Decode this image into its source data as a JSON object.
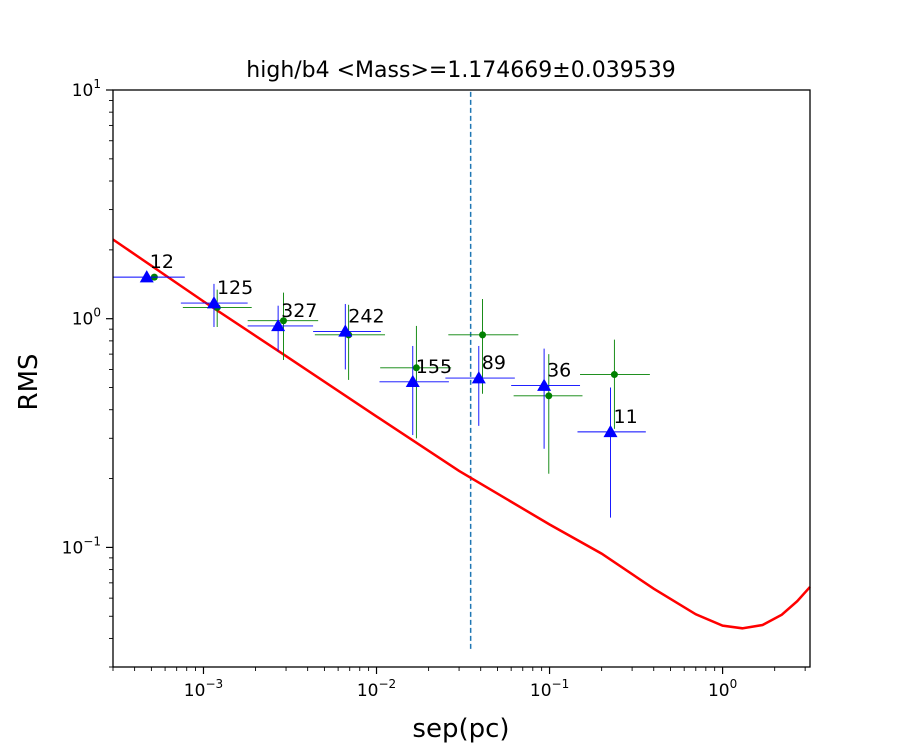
{
  "chart_data": {
    "type": "scatter",
    "title": "high/b4 <Mass>=1.174669±0.039539",
    "xlabel": "sep(pc)",
    "ylabel": "RMS",
    "xscale": "log",
    "yscale": "log",
    "xlim": [
      0.0003,
      3.2
    ],
    "ylim": [
      0.03,
      10
    ],
    "x_ticks": [
      {
        "value": 0.001,
        "base": "10",
        "exp": "−3"
      },
      {
        "value": 0.01,
        "base": "10",
        "exp": "−2"
      },
      {
        "value": 0.1,
        "base": "10",
        "exp": "−1"
      },
      {
        "value": 1,
        "base": "10",
        "exp": "0"
      }
    ],
    "y_ticks": [
      {
        "value": 0.1,
        "base": "10",
        "exp": "−1"
      },
      {
        "value": 1,
        "base": "10",
        "exp": "0"
      },
      {
        "value": 10,
        "base": "10",
        "exp": "1"
      }
    ],
    "grid": false,
    "vline": {
      "x": 0.035,
      "color": "#1f77b4",
      "style": "dashed",
      "y_range": [
        0.036,
        10
      ]
    },
    "series": [
      {
        "marker": "triangle",
        "color": "#0000ff",
        "points": [
          {
            "x": 0.00047,
            "y": 1.52,
            "xerr": [
              0.0003,
              0.00078
            ],
            "yerr": [
              1.52,
              1.52
            ],
            "label": "12"
          },
          {
            "x": 0.00115,
            "y": 1.17,
            "xerr": [
              0.00074,
              0.0018
            ],
            "yerr": [
              0.92,
              1.42
            ],
            "label": "125"
          },
          {
            "x": 0.0027,
            "y": 0.93,
            "xerr": [
              0.0018,
              0.0043
            ],
            "yerr": [
              0.72,
              1.14
            ],
            "label": "327"
          },
          {
            "x": 0.0066,
            "y": 0.88,
            "xerr": [
              0.0043,
              0.0106
            ],
            "yerr": [
              0.6,
              1.16
            ],
            "label": "242"
          },
          {
            "x": 0.0162,
            "y": 0.53,
            "xerr": [
              0.0104,
              0.0262
            ],
            "yerr": [
              0.31,
              0.76
            ],
            "label": "155"
          },
          {
            "x": 0.039,
            "y": 0.55,
            "xerr": [
              0.025,
              0.063
            ],
            "yerr": [
              0.34,
              0.76
            ],
            "label": "89"
          },
          {
            "x": 0.093,
            "y": 0.51,
            "xerr": [
              0.06,
              0.15
            ],
            "yerr": [
              0.27,
              0.74
            ],
            "label": "36"
          },
          {
            "x": 0.225,
            "y": 0.32,
            "xerr": [
              0.145,
              0.36
            ],
            "yerr": [
              0.135,
              0.5
            ],
            "label": "11"
          }
        ]
      },
      {
        "marker": "circle",
        "color": "#008000",
        "points": [
          {
            "x": 0.00052,
            "y": 1.52,
            "xerr": [
              0.00052,
              0.00052
            ],
            "yerr": [
              1.52,
              1.52
            ]
          },
          {
            "x": 0.0012,
            "y": 1.12,
            "xerr": [
              0.00076,
              0.0019
            ],
            "yerr": [
              0.92,
              1.34
            ]
          },
          {
            "x": 0.0029,
            "y": 0.98,
            "xerr": [
              0.0018,
              0.0046
            ],
            "yerr": [
              0.66,
              1.3
            ]
          },
          {
            "x": 0.0069,
            "y": 0.85,
            "xerr": [
              0.0044,
              0.0112
            ],
            "yerr": [
              0.54,
              1.15
            ]
          },
          {
            "x": 0.017,
            "y": 0.61,
            "xerr": [
              0.0105,
              0.027
            ],
            "yerr": [
              0.3,
              0.93
            ]
          },
          {
            "x": 0.041,
            "y": 0.85,
            "xerr": [
              0.026,
              0.066
            ],
            "yerr": [
              0.47,
              1.22
            ]
          },
          {
            "x": 0.099,
            "y": 0.46,
            "xerr": [
              0.062,
              0.155
            ],
            "yerr": [
              0.21,
              0.7
            ]
          },
          {
            "x": 0.237,
            "y": 0.57,
            "xerr": [
              0.15,
              0.38
            ],
            "yerr": [
              0.33,
              0.81
            ]
          }
        ]
      }
    ],
    "fit_curve": {
      "color": "#ff0000",
      "points": [
        [
          0.0003,
          2.22
        ],
        [
          0.001,
          1.19
        ],
        [
          0.003,
          0.686
        ],
        [
          0.01,
          0.374
        ],
        [
          0.03,
          0.216
        ],
        [
          0.1,
          0.126
        ],
        [
          0.2,
          0.094
        ],
        [
          0.4,
          0.066
        ],
        [
          0.7,
          0.051
        ],
        [
          1.0,
          0.0455
        ],
        [
          1.3,
          0.0443
        ],
        [
          1.7,
          0.0458
        ],
        [
          2.2,
          0.0508
        ],
        [
          2.7,
          0.0582
        ],
        [
          3.2,
          0.0672
        ]
      ]
    }
  }
}
